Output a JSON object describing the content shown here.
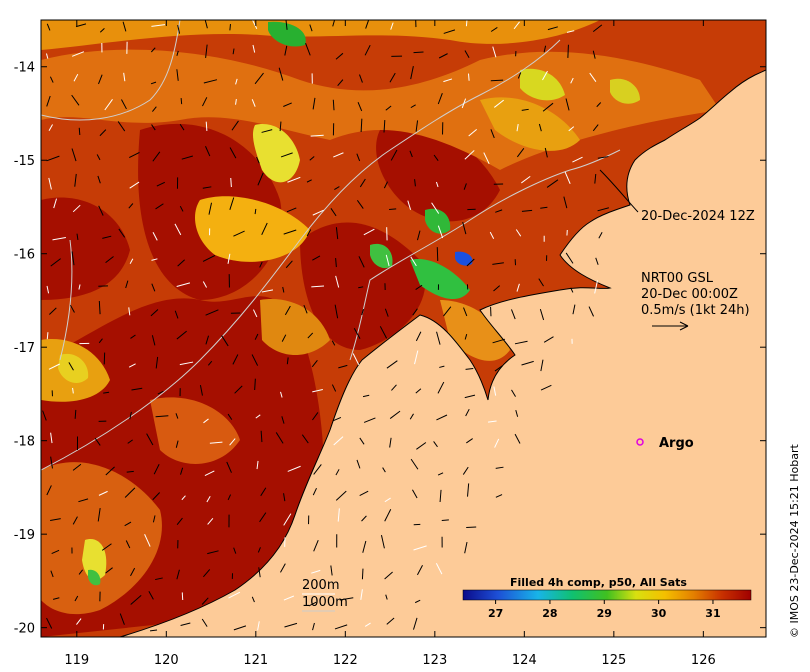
{
  "map": {
    "x_ticks": [
      "119",
      "120",
      "121",
      "122",
      "123",
      "124",
      "125",
      "126"
    ],
    "y_ticks": [
      "-14",
      "-15",
      "-16",
      "-17",
      "-18",
      "-19",
      "-20"
    ],
    "x_range": [
      118.6,
      126.7
    ],
    "y_range": [
      -20.1,
      -13.5
    ],
    "colors": {
      "land": "#fdcb98",
      "coast": "#000000",
      "contour": "#bfbfbf",
      "argo": "#e000e0"
    }
  },
  "annotations": {
    "track_time": "20-Dec-2024 12Z",
    "vector_source": "NRT00 GSL",
    "vector_time": "20-Dec 00:00Z",
    "vector_scale": "0.5m/s (1kt 24h)",
    "argo_label": "Argo",
    "depth_200": "200m",
    "depth_1000": "1000m",
    "credit": "© IMOS 23-Dec-2024 15:21 Hobart"
  },
  "colorbar": {
    "title": "Filled 4h comp, p50, All Sats",
    "ticks": [
      "27",
      "28",
      "29",
      "30",
      "31"
    ],
    "range": [
      26.4,
      31.7
    ],
    "tick_values": [
      27,
      28,
      29,
      30,
      31
    ]
  }
}
